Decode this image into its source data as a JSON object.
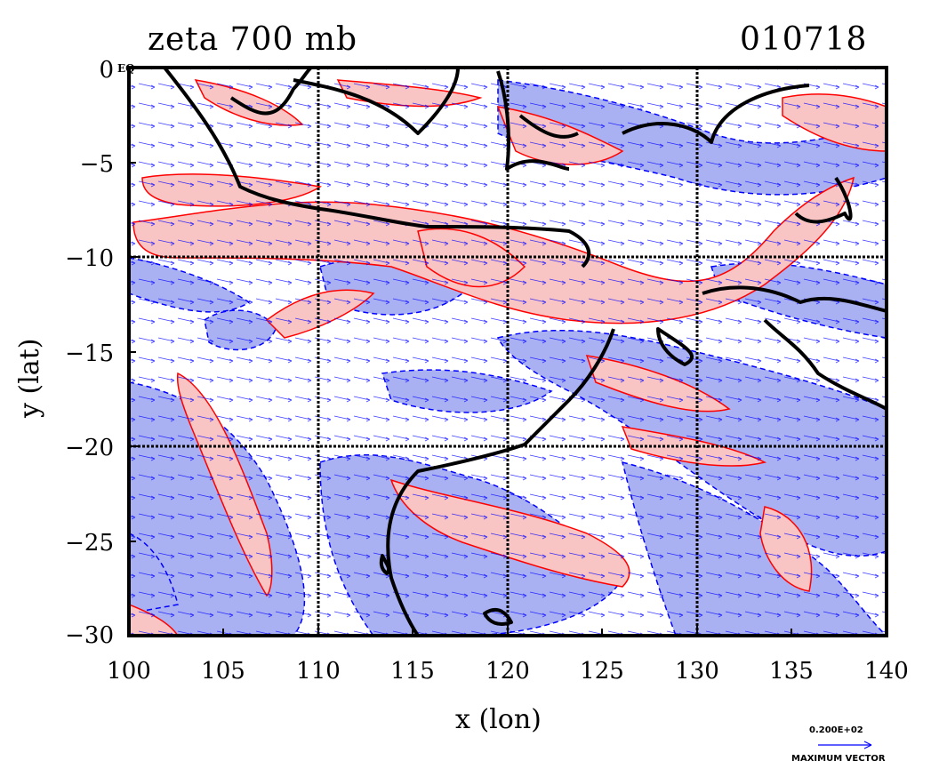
{
  "title_left": "zeta 700 mb",
  "title_right": "010718",
  "xlabel": "x (lon)",
  "ylabel": "y (lat)",
  "equator_label": "EQ",
  "x_ticks": [
    "100",
    "105",
    "110",
    "115",
    "120",
    "125",
    "130",
    "135",
    "140"
  ],
  "y_ticks": [
    "0",
    "−5",
    "−10",
    "−15",
    "−20",
    "−25",
    "−30"
  ],
  "max_vector": {
    "value": "0.200E+02",
    "caption": "MAXIMUM VECTOR"
  },
  "colors": {
    "positive_fill": "#f9c4c4",
    "positive_line": "#ff0000",
    "negative_fill": "#a9b1f3",
    "negative_line": "#0000ff",
    "coast": "#000000",
    "vector": "#0000ff"
  },
  "chart_data": {
    "type": "map",
    "field": "relative vorticity (zeta) at 700 mb with wind vectors",
    "xlim": [
      100,
      140
    ],
    "ylim": [
      -30,
      0
    ],
    "gridlines": {
      "x": [
        110,
        120,
        130
      ],
      "y": [
        -10,
        -20
      ]
    },
    "contours": [
      "positive vorticity (red solid, pink fill)",
      "negative vorticity (blue dashed, blue fill)"
    ]
  }
}
